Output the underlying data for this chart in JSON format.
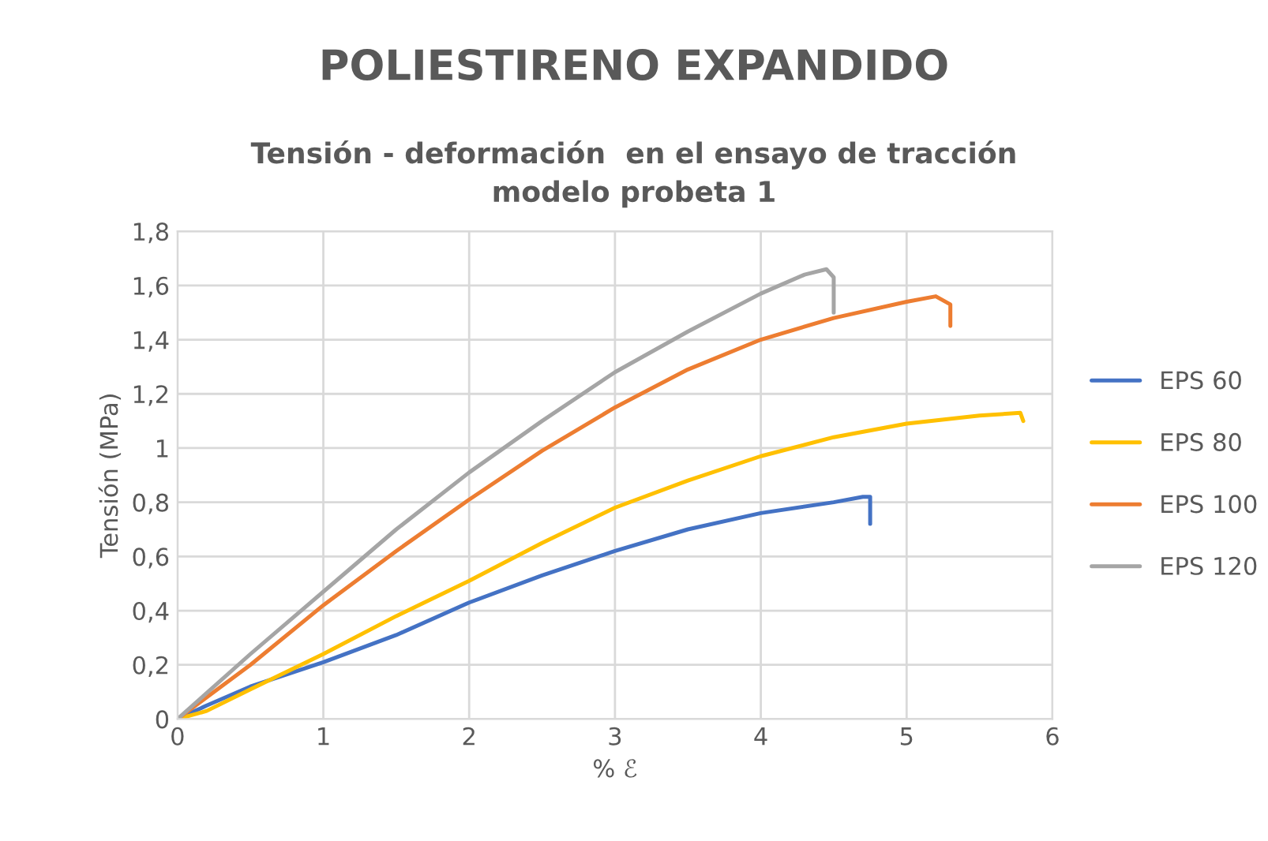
{
  "chart_data": {
    "type": "line",
    "title": "POLIESTIRENO EXPANDIDO",
    "subtitle": "Tensión - deformación  en el ensayo de tracción\nmodelo probeta 1",
    "xlabel": "% ℰ",
    "ylabel": "Tensión (MPa)",
    "xlim": [
      0,
      6
    ],
    "xticks": [
      0,
      1,
      2,
      3,
      4,
      5,
      6
    ],
    "ylim": [
      0,
      1.8
    ],
    "yticks": [
      {
        "value": 0,
        "label": "0"
      },
      {
        "value": 0.2,
        "label": "0,2"
      },
      {
        "value": 0.4,
        "label": "0,4"
      },
      {
        "value": 0.6,
        "label": "0,6"
      },
      {
        "value": 0.8,
        "label": "0,8"
      },
      {
        "value": 1,
        "label": "1"
      },
      {
        "value": 1.2,
        "label": "1,2"
      },
      {
        "value": 1.4,
        "label": "1,4"
      },
      {
        "value": 1.6,
        "label": "1,6"
      },
      {
        "value": 1.8,
        "label": "1,8"
      }
    ],
    "grid": true,
    "legend": "right",
    "marker": "none",
    "line_style": "solid",
    "series": [
      {
        "name": "EPS 60",
        "color": "#4472c4",
        "x": [
          0,
          0.2,
          0.5,
          1,
          1.5,
          2,
          2.5,
          3,
          3.5,
          4,
          4.5,
          4.7,
          4.75,
          4.75
        ],
        "values": [
          0,
          0.05,
          0.12,
          0.21,
          0.31,
          0.43,
          0.53,
          0.62,
          0.7,
          0.76,
          0.8,
          0.82,
          0.82,
          0.72
        ]
      },
      {
        "name": "EPS 80",
        "color": "#ffc000",
        "x": [
          0,
          0.2,
          0.5,
          1,
          1.5,
          2,
          2.5,
          3,
          3.5,
          4,
          4.5,
          5,
          5.5,
          5.78,
          5.8
        ],
        "values": [
          0,
          0.03,
          0.11,
          0.24,
          0.38,
          0.51,
          0.65,
          0.78,
          0.88,
          0.97,
          1.04,
          1.09,
          1.12,
          1.13,
          1.1
        ]
      },
      {
        "name": "EPS 100",
        "color": "#ed7d31",
        "x": [
          0,
          0.5,
          1,
          1.5,
          2,
          2.5,
          3,
          3.5,
          4,
          4.5,
          5,
          5.2,
          5.3,
          5.3
        ],
        "values": [
          0,
          0.2,
          0.42,
          0.62,
          0.81,
          0.99,
          1.15,
          1.29,
          1.4,
          1.48,
          1.54,
          1.56,
          1.53,
          1.45
        ]
      },
      {
        "name": "EPS 120",
        "color": "#a5a5a5",
        "x": [
          0,
          0.5,
          1,
          1.5,
          2,
          2.5,
          3,
          3.5,
          4,
          4.3,
          4.45,
          4.5,
          4.5
        ],
        "values": [
          0,
          0.24,
          0.47,
          0.7,
          0.91,
          1.1,
          1.28,
          1.43,
          1.57,
          1.64,
          1.66,
          1.63,
          1.5
        ]
      }
    ]
  }
}
